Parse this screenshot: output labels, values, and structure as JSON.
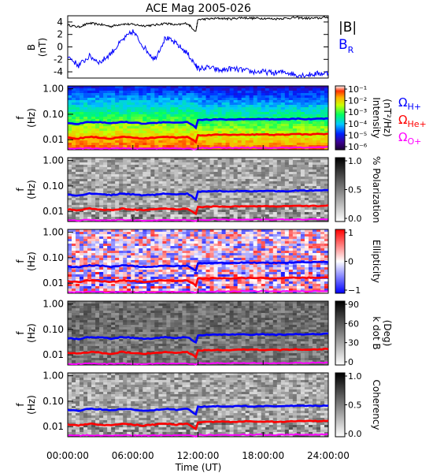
{
  "figure": {
    "title": "ACE Mag 2005-026",
    "time_axis": {
      "label": "Time (UT)",
      "tick_labels": [
        "00:00:00",
        "06:00:00",
        "12:00:00",
        "18:00:00",
        "24:00:00"
      ],
      "range_hours": [
        0,
        24
      ]
    },
    "legend": {
      "b_total": "|B|",
      "b_radial": "B",
      "b_radial_sub": "R",
      "omega_h": "Ω",
      "omega_h_sub": "H+",
      "omega_he": "Ω",
      "omega_he_sub": "He+",
      "omega_o": "Ω",
      "omega_o_sub": "O+"
    },
    "freq_ticks": [
      "1.00",
      "0.10",
      "0.01"
    ],
    "freq_ylabel": "f",
    "freq_yunit": "(Hz)"
  },
  "colors": {
    "b_total": "#000000",
    "b_radial": "#0000ff",
    "omega_h": "#0000ff",
    "omega_he": "#ff0000",
    "omega_o": "#ff00ff"
  },
  "chart_data": [
    {
      "type": "line",
      "ylabel": "B",
      "yunit": "(nT)",
      "ylim": [
        -5,
        5
      ],
      "ytick_labels": [
        "4",
        "2",
        "0",
        "-2",
        "-4"
      ],
      "x_hours": [
        0,
        1,
        2,
        3,
        4,
        5,
        6,
        7,
        8,
        9,
        10,
        11,
        11.8,
        12,
        13,
        14,
        15,
        16,
        17,
        18,
        19,
        20,
        21,
        22,
        23,
        24
      ],
      "series": [
        {
          "key": "b_total",
          "values": [
            3.5,
            3.2,
            3.8,
            3.6,
            3.3,
            3.7,
            3.6,
            3.4,
            3.5,
            3.8,
            3.5,
            3.8,
            2.5,
            4.4,
            4.5,
            4.6,
            4.5,
            4.7,
            4.6,
            4.6,
            4.5,
            4.6,
            4.7,
            4.6,
            4.6,
            4.8
          ]
        },
        {
          "key": "b_radial",
          "values": [
            -1.5,
            -3,
            -1.5,
            -2.5,
            -1,
            1,
            2.5,
            0,
            -2,
            1.5,
            0.5,
            -1,
            -3,
            -3.5,
            -3.3,
            -3.8,
            -3.5,
            -3.7,
            -4,
            -4,
            -4.2,
            -4,
            -4.5,
            -4.5,
            -4.3,
            -4.2
          ]
        }
      ]
    },
    {
      "type": "heatmap",
      "ylabel": "f",
      "yunit": "(Hz)",
      "colorbar_label": "Intensity",
      "colorbar_unit": "(nT²/Hz)",
      "colorbar_ticks": [
        "10⁻¹",
        "10⁻²",
        "10⁻³",
        "10⁻⁴",
        "10⁻⁵",
        "10⁻⁶"
      ],
      "ylim_hz": [
        0.004,
        1.3
      ],
      "scale": "log"
    },
    {
      "type": "heatmap",
      "ylabel": "f",
      "yunit": "(Hz)",
      "colorbar_label": "% Polarization",
      "colorbar_ticks": [
        "1.0",
        "0.5",
        "0.0"
      ],
      "ylim_hz": [
        0.004,
        1.3
      ],
      "scale": "log"
    },
    {
      "type": "heatmap",
      "ylabel": "f",
      "yunit": "(Hz)",
      "colorbar_label": "Ellipticity",
      "colorbar_ticks": [
        "1",
        "0",
        "−1"
      ],
      "ylim_hz": [
        0.004,
        1.3
      ],
      "scale": "log"
    },
    {
      "type": "heatmap",
      "ylabel": "f",
      "yunit": "(Hz)",
      "colorbar_label": "k dot B",
      "colorbar_unit": "(Deg)",
      "colorbar_ticks": [
        "90",
        "60",
        "30",
        "0"
      ],
      "ylim_hz": [
        0.004,
        1.3
      ],
      "scale": "log"
    },
    {
      "type": "heatmap",
      "ylabel": "f",
      "yunit": "(Hz)",
      "colorbar_label": "Coherency",
      "colorbar_ticks": [
        "1.0",
        "0.5",
        "0.0"
      ],
      "ylim_hz": [
        0.004,
        1.3
      ],
      "scale": "log"
    }
  ],
  "gyrofrequency_lines": {
    "x_hours": [
      0,
      1,
      2,
      3,
      4,
      5,
      6,
      7,
      8,
      9,
      10,
      11,
      11.8,
      12,
      13,
      14,
      15,
      16,
      17,
      18,
      19,
      20,
      21,
      22,
      23,
      24
    ],
    "omega_h_hz": [
      0.045,
      0.042,
      0.05,
      0.048,
      0.044,
      0.05,
      0.047,
      0.043,
      0.045,
      0.05,
      0.046,
      0.05,
      0.03,
      0.06,
      0.061,
      0.063,
      0.062,
      0.064,
      0.063,
      0.064,
      0.062,
      0.063,
      0.066,
      0.065,
      0.066,
      0.068
    ],
    "omega_he_hz": [
      0.012,
      0.011,
      0.013,
      0.012,
      0.011,
      0.013,
      0.012,
      0.011,
      0.012,
      0.013,
      0.012,
      0.013,
      0.008,
      0.015,
      0.0153,
      0.0157,
      0.0155,
      0.016,
      0.0158,
      0.016,
      0.0155,
      0.0158,
      0.0165,
      0.0162,
      0.0165,
      0.017
    ],
    "omega_o_hz": [
      0.0045,
      0.0044,
      0.0046,
      0.0045,
      0.0044,
      0.0046,
      0.0045,
      0.0044,
      0.0045,
      0.0046,
      0.0045,
      0.0046,
      0.0041,
      0.0047,
      0.0047,
      0.0048,
      0.0047,
      0.0048,
      0.0048,
      0.0048,
      0.0047,
      0.0048,
      0.0049,
      0.0048,
      0.0049,
      0.005
    ]
  }
}
